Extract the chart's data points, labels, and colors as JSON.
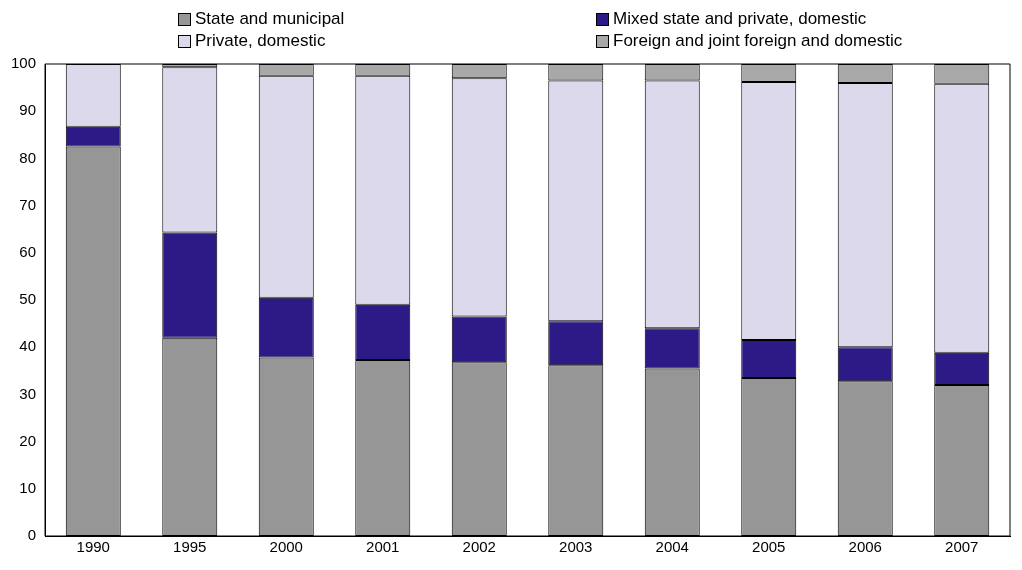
{
  "chart_data": {
    "type": "bar",
    "stacked": true,
    "categories": [
      "1990",
      "1995",
      "2000",
      "2001",
      "2002",
      "2003",
      "2004",
      "2005",
      "2006",
      "2007"
    ],
    "series": [
      {
        "name": "State and municipal",
        "color": "#969696",
        "values": [
          82.5,
          42,
          37.8,
          37.3,
          36.8,
          36.2,
          35.5,
          33.5,
          32.8,
          32
        ]
      },
      {
        "name": "Mixed state and private, domestic",
        "color": "#2e1a87",
        "values": [
          4.2,
          22.3,
          12.7,
          11.7,
          9.7,
          9.3,
          8.5,
          8,
          7.2,
          6.8
        ]
      },
      {
        "name": "Private, domestic",
        "color": "#dcd9ec",
        "values": [
          13.3,
          35,
          47,
          48.5,
          50.5,
          51,
          52.5,
          54.7,
          56,
          57
        ]
      },
      {
        "name": "Foreign and joint foreign and domestic",
        "color": "#a8a8a8",
        "values": [
          0,
          0.7,
          2.5,
          2.5,
          3,
          3.5,
          3.5,
          3.8,
          4,
          4.2
        ]
      }
    ],
    "ylim": [
      0,
      100
    ],
    "yticks": [
      0,
      10,
      20,
      30,
      40,
      50,
      60,
      70,
      80,
      90,
      100
    ],
    "grid": false,
    "legend": "top"
  }
}
